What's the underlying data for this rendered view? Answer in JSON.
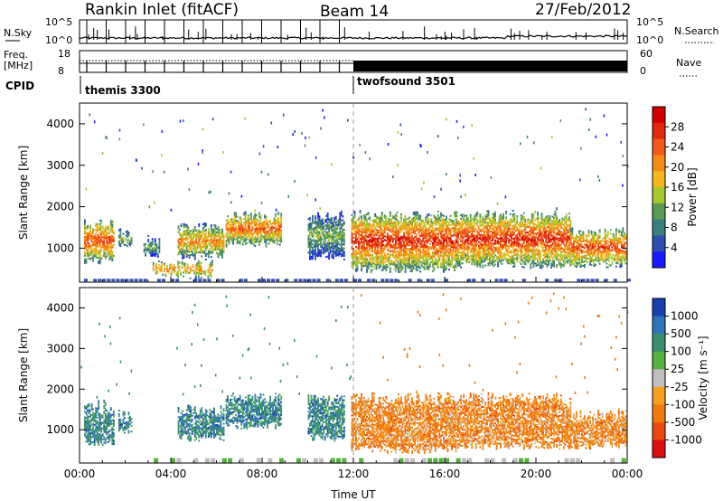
{
  "header": {
    "title": "Rankin Inlet (fitACF)",
    "beam": "Beam 14",
    "date": "27/Feb/2012"
  },
  "param_panel": {
    "nsky_label": "N.Sky",
    "nsearch_label": "N.Search",
    "freq_label": "Freq.",
    "freq_unit": "[MHz]",
    "nave_label": "Nave",
    "cpid_label": "CPID",
    "left_ticks_top": [
      "10^5",
      "10^0"
    ],
    "right_ticks_top": [
      "10^5",
      "10^0"
    ],
    "left_ticks_freq": [
      "18",
      "8"
    ],
    "right_ticks_nave": [
      "60",
      "0"
    ],
    "cpid_modes": [
      {
        "name": "themis 3300",
        "start_hour": 0
      },
      {
        "name": "twofsound 3501",
        "start_hour": 12
      }
    ]
  },
  "chart_data": [
    {
      "type": "heatmap",
      "panel": "power",
      "ylabel": "Slant Range [km]",
      "xlim": [
        0,
        24
      ],
      "ylim": [
        180,
        4500
      ],
      "yticks": [
        1000,
        2000,
        3000,
        4000
      ],
      "colorbar": {
        "label": "Power [dB]",
        "ticks": [
          "4",
          "8",
          "12",
          "16",
          "20",
          "24",
          "28"
        ],
        "range": [
          0,
          30
        ],
        "colors": [
          "#1a1aff",
          "#2e4fb0",
          "#3a7f7c",
          "#5a9a55",
          "#a8c830",
          "#f2b81e",
          "#f48a18",
          "#f05a1a",
          "#e02a10",
          "#d00000"
        ]
      },
      "echo_regions": [
        {
          "t0": 0.2,
          "t1": 1.5,
          "r0": 600,
          "r1": 1700,
          "peak": 28
        },
        {
          "t0": 1.7,
          "t1": 2.3,
          "r0": 900,
          "r1": 1500,
          "peak": 16
        },
        {
          "t0": 2.8,
          "t1": 3.5,
          "r0": 700,
          "r1": 1300,
          "peak": 14
        },
        {
          "t0": 4.3,
          "t1": 6.3,
          "r0": 700,
          "r1": 1600,
          "peak": 24
        },
        {
          "t0": 6.4,
          "t1": 8.8,
          "r0": 1000,
          "r1": 1900,
          "peak": 26
        },
        {
          "t0": 3.2,
          "t1": 5.8,
          "r0": 250,
          "r1": 700,
          "peak": 24
        },
        {
          "t0": 10.0,
          "t1": 11.6,
          "r0": 700,
          "r1": 1900,
          "peak": 16
        },
        {
          "t0": 11.9,
          "t1": 16.5,
          "r0": 400,
          "r1": 1900,
          "peak": 30
        },
        {
          "t0": 16.5,
          "t1": 21.5,
          "r0": 500,
          "r1": 1900,
          "peak": 30
        },
        {
          "t0": 21.5,
          "t1": 23.9,
          "r0": 500,
          "r1": 1500,
          "peak": 28
        }
      ]
    },
    {
      "type": "heatmap",
      "panel": "velocity",
      "xlabel": "Time UT",
      "ylabel": "Slant Range [km]",
      "xlim": [
        0,
        24
      ],
      "ylim": [
        180,
        4500
      ],
      "xticks": [
        "00:00",
        "04:00",
        "08:00",
        "12:00",
        "16:00",
        "20:00",
        "00:00"
      ],
      "yticks": [
        1000,
        2000,
        3000,
        4000
      ],
      "colorbar": {
        "label": "Velocity [m s⁻¹]",
        "ticks": [
          "1000",
          "500",
          "100",
          "25",
          "-25",
          "-100",
          "-500",
          "-1000"
        ],
        "colors": [
          "#1a3fb0",
          "#2e74b8",
          "#3a8f6f",
          "#55b040",
          "#bfbfbf",
          "#f5a020",
          "#f07a10",
          "#e84a10",
          "#d81010"
        ]
      },
      "echo_regions": [
        {
          "t0": 0.2,
          "t1": 1.5,
          "r0": 600,
          "r1": 1700,
          "class": "positive"
        },
        {
          "t0": 1.7,
          "t1": 2.3,
          "r0": 900,
          "r1": 1500,
          "class": "positive"
        },
        {
          "t0": 4.3,
          "t1": 6.3,
          "r0": 700,
          "r1": 1600,
          "class": "positive"
        },
        {
          "t0": 6.4,
          "t1": 8.8,
          "r0": 1000,
          "r1": 1900,
          "class": "positive"
        },
        {
          "t0": 10.0,
          "t1": 11.6,
          "r0": 700,
          "r1": 1900,
          "class": "positive"
        },
        {
          "t0": 11.9,
          "t1": 16.5,
          "r0": 400,
          "r1": 1900,
          "class": "negative"
        },
        {
          "t0": 16.5,
          "t1": 21.5,
          "r0": 500,
          "r1": 1900,
          "class": "negative"
        },
        {
          "t0": 21.5,
          "t1": 23.9,
          "r0": 500,
          "r1": 1500,
          "class": "negative"
        }
      ]
    }
  ]
}
